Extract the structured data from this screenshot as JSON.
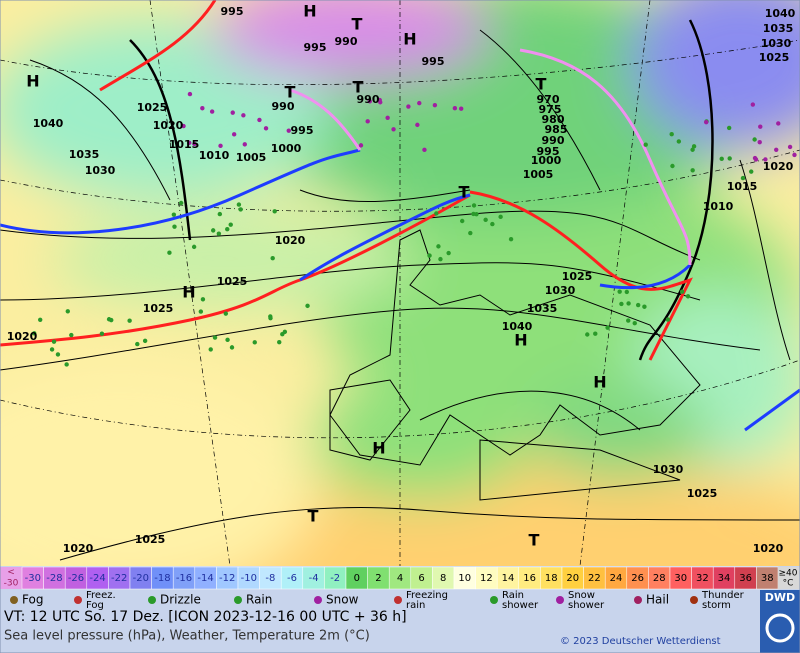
{
  "map": {
    "labels": [
      "995",
      "H",
      "T",
      "990",
      "995",
      "H",
      "995",
      "1040",
      "1035",
      "1030",
      "1025",
      "H",
      "1025",
      "1020",
      "1040",
      "990",
      "T",
      "T",
      "990",
      "995",
      "1000",
      "1005",
      "1015",
      "1010",
      "1035",
      "1030",
      "T",
      "970",
      "975",
      "980",
      "985",
      "990",
      "995",
      "1000",
      "1005",
      "1015",
      "1010",
      "1020",
      "T",
      "1020",
      "1025",
      "H",
      "1025",
      "1020",
      "1025",
      "1030",
      "1035",
      "1040",
      "H",
      "H",
      "H",
      "1030",
      "1025",
      "T",
      "1025",
      "1020",
      "T",
      "1020"
    ]
  },
  "legend": {
    "low": [
      "<",
      "-30"
    ],
    "cells": [
      "-30",
      "-28",
      "-26",
      "-24",
      "-22",
      "-20",
      "-18",
      "-16",
      "-14",
      "-12",
      "-10",
      "-8",
      "-6",
      "-4",
      "-2",
      "0",
      "2",
      "4",
      "6",
      "8",
      "10",
      "12",
      "14",
      "16",
      "18",
      "20",
      "22",
      "24",
      "26",
      "28",
      "30",
      "32",
      "34",
      "36",
      "38"
    ],
    "high": [
      "≥40",
      "°C"
    ],
    "items": [
      [
        "Fog"
      ],
      [
        "Freez.",
        "Fog"
      ],
      [
        "Drizzle"
      ],
      [
        "Rain"
      ],
      [
        "Snow"
      ],
      [
        "Freezing",
        "rain"
      ],
      [
        "Rain",
        "shower"
      ],
      [
        "Snow",
        "shower"
      ],
      [
        "Hail"
      ],
      [
        "Thunder",
        "storm"
      ]
    ]
  },
  "footer": {
    "valid": "VT: 12 UTC So.  17 Dez. [ICON 2023-12-16  00 UTC + 36 h]",
    "description": "Sea level pressure (hPa), Weather, Temperature 2m (°C)",
    "copyright": "© 2023 Deutscher Wetterdienst",
    "logo": "DWD"
  }
}
